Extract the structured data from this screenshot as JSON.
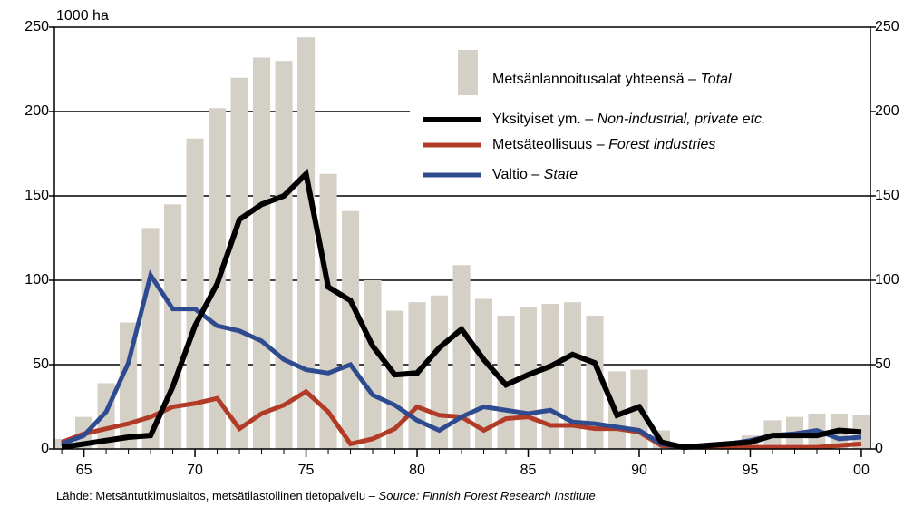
{
  "chart_data": {
    "type": "bar_line",
    "ylabel": "1000 ha",
    "source": "Lähde: Metsäntutkimuslaitos, metsätilastollinen tietopalvelu –",
    "source_en": "Source: Finnish Forest Research Institute",
    "x": [
      1964,
      1965,
      1966,
      1967,
      1968,
      1969,
      1970,
      1971,
      1972,
      1973,
      1974,
      1975,
      1976,
      1977,
      1978,
      1979,
      1980,
      1981,
      1982,
      1983,
      1984,
      1985,
      1986,
      1987,
      1988,
      1989,
      1990,
      1991,
      1992,
      1993,
      1994,
      1995,
      1996,
      1997,
      1998,
      1999,
      2000
    ],
    "xlim": [
      1963.67,
      2000.41
    ],
    "xticks": [
      {
        "value": 1965,
        "label": "65"
      },
      {
        "value": 1970,
        "label": "70"
      },
      {
        "value": 1975,
        "label": "75"
      },
      {
        "value": 1980,
        "label": "80"
      },
      {
        "value": 1985,
        "label": "85"
      },
      {
        "value": 1990,
        "label": "90"
      },
      {
        "value": 1995,
        "label": "95"
      },
      {
        "value": 2000,
        "label": "00"
      }
    ],
    "ylim": [
      0,
      250
    ],
    "yticks": [
      0,
      50,
      100,
      150,
      200,
      250
    ],
    "y2lim": [
      0,
      250
    ],
    "y2ticks": [
      0,
      50,
      100,
      150,
      200,
      250
    ],
    "grid": true,
    "series": [
      {
        "name": "Metsänlannoitusalat yhteensä –",
        "name_en": "Total",
        "type": "bar",
        "color": "#d5d0c5",
        "values": [
          6,
          19,
          39,
          75,
          131,
          145,
          184,
          202,
          220,
          232,
          230,
          244,
          163,
          141,
          100,
          82,
          87,
          91,
          109,
          89,
          79,
          84,
          86,
          87,
          79,
          46,
          47,
          11,
          3,
          3,
          4,
          8,
          17,
          19,
          21,
          21,
          20
        ]
      },
      {
        "name": "Yksityiset ym. –",
        "name_en": "Non-industrial, private etc.",
        "type": "line",
        "color": "#000000",
        "values": [
          1,
          3,
          5,
          7,
          8,
          37,
          73,
          98,
          136,
          145,
          150,
          163,
          96,
          88,
          61,
          44,
          45,
          60,
          71,
          53,
          38,
          44,
          49,
          56,
          51,
          20,
          25,
          4,
          1,
          2,
          3,
          4,
          8,
          8,
          8,
          11,
          10
        ]
      },
      {
        "name": "Metsäteollisuus –",
        "name_en": "Forest industries",
        "type": "line",
        "color": "#b23b27",
        "values": [
          4,
          9,
          12,
          15,
          19,
          25,
          27,
          30,
          12,
          21,
          26,
          34,
          22,
          3,
          6,
          12,
          25,
          20,
          19,
          11,
          18,
          19,
          14,
          14,
          12,
          12,
          10,
          2,
          1,
          1,
          1,
          1,
          1,
          1,
          1,
          2,
          3
        ]
      },
      {
        "name": "Valtio –",
        "name_en": "State",
        "type": "line",
        "color": "#2f4b8f",
        "values": [
          3,
          8,
          22,
          51,
          103,
          83,
          83,
          73,
          70,
          64,
          53,
          47,
          45,
          50,
          32,
          26,
          17,
          11,
          19,
          25,
          23,
          21,
          23,
          16,
          15,
          13,
          11,
          3,
          1,
          2,
          3,
          5,
          8,
          9,
          11,
          6,
          7
        ]
      }
    ]
  }
}
